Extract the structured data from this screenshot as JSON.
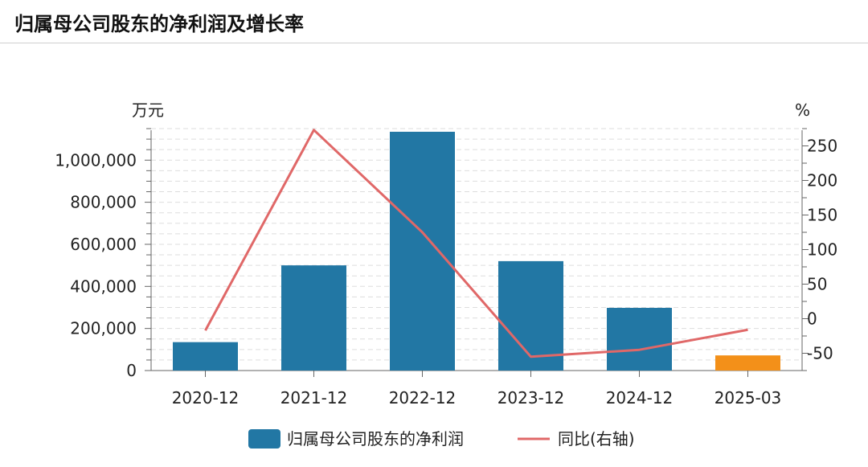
{
  "page": {
    "title": "归属母公司股东的净利润及增长率"
  },
  "chart_data": {
    "type": "bar",
    "categories": [
      "2020-12",
      "2021-12",
      "2022-12",
      "2023-12",
      "2024-12",
      "2025-03"
    ],
    "series": [
      {
        "name": "归属母公司股东的净利润",
        "type": "bar",
        "axis": "left",
        "values": [
          135000,
          500000,
          1135000,
          520000,
          298000,
          72000
        ]
      },
      {
        "name": "同比(右轴)",
        "type": "line",
        "axis": "right",
        "values": [
          -17,
          273,
          125,
          -55,
          -45,
          -16
        ]
      }
    ],
    "left_axis": {
      "unit": "万元",
      "ylim": [
        0,
        1150000
      ],
      "ticks": [
        0,
        200000,
        400000,
        600000,
        800000,
        1000000
      ],
      "tick_labels": [
        "0",
        "200,000",
        "400,000",
        "600,000",
        "800,000",
        "1,000,000"
      ]
    },
    "right_axis": {
      "unit": "%",
      "ylim": [
        -75,
        275
      ],
      "ticks": [
        -50,
        0,
        50,
        100,
        150,
        200,
        250
      ],
      "tick_labels": [
        "-50",
        "0",
        "50",
        "100",
        "150",
        "200",
        "250"
      ]
    },
    "highlight_index": 5,
    "legend_position": "bottom-center",
    "grid": true,
    "colors": {
      "bar": "#2277a4",
      "bar_highlight": "#f39019",
      "line": "#e06868",
      "grid": "#dddddd",
      "axis": "#666666"
    }
  }
}
